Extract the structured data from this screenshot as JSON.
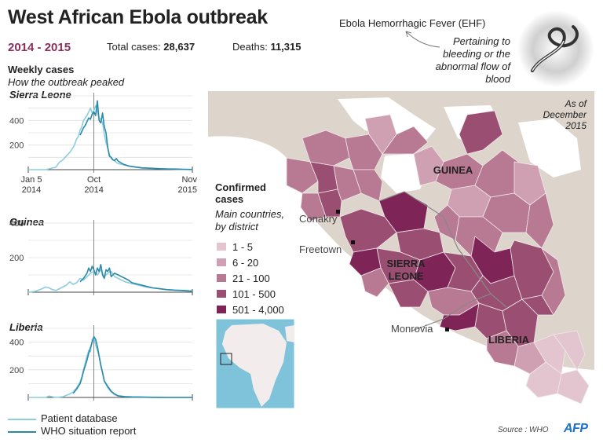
{
  "header": {
    "title": "West African Ebola outbreak",
    "years": "2014 - 2015",
    "total_cases_label": "Total cases:",
    "total_cases_value": "28,637",
    "deaths_label": "Deaths:",
    "deaths_value": "11,315"
  },
  "ehf": {
    "title": "Ebola Hemorrhagic Fever (EHF)",
    "definition": "Pertaining to bleeding or the abnormal flow of blood"
  },
  "weekly": {
    "heading": "Weekly cases",
    "subheading": "How the outbreak peaked"
  },
  "legend": {
    "patient": "Patient database",
    "who": "WHO situation report"
  },
  "colors": {
    "patient": "#8ecde0",
    "who": "#2a8aaa",
    "accent": "#8c2d5a",
    "map_bg": "#ddd4cc",
    "ocean": "#ffffff",
    "scale": [
      "#e3c5cf",
      "#cf9fb2",
      "#b87993",
      "#9a4e72",
      "#7e2457"
    ]
  },
  "chart_data": [
    {
      "type": "line",
      "title": "Sierra Leone",
      "x_tick_labels": [
        [
          "Jan 5",
          "2014"
        ],
        [
          "Oct",
          "2014"
        ],
        [
          "Nov",
          "2015"
        ]
      ],
      "x_tick_weeks": [
        0,
        38,
        95
      ],
      "ylim": [
        0,
        600
      ],
      "y_ticks": [
        200,
        400
      ],
      "series": [
        {
          "name": "Patient database",
          "weeks": [
            0,
            10,
            16,
            18,
            20,
            22,
            24,
            26,
            27,
            28,
            29,
            30,
            31,
            32,
            33,
            34,
            35,
            36,
            37,
            38,
            39,
            40,
            41,
            42,
            43,
            44,
            45,
            46,
            47,
            48,
            49,
            50,
            51,
            52,
            55,
            58,
            62,
            66,
            70,
            75,
            80,
            85,
            90,
            95
          ],
          "values": [
            0,
            0,
            20,
            60,
            80,
            110,
            140,
            180,
            210,
            250,
            270,
            320,
            350,
            400,
            420,
            440,
            470,
            500,
            460,
            480,
            520,
            470,
            420,
            410,
            380,
            290,
            220,
            180,
            120,
            90,
            80,
            70,
            60,
            50,
            40,
            30,
            20,
            12,
            10,
            8,
            6,
            4,
            2,
            0
          ]
        },
        {
          "name": "WHO situation report",
          "weeks": [
            30,
            31,
            32,
            33,
            34,
            35,
            36,
            37,
            38,
            39,
            40,
            41,
            42,
            43,
            44,
            45,
            46,
            47,
            48,
            49,
            50,
            51,
            52,
            55,
            58,
            62,
            66,
            70,
            75,
            80,
            85,
            90,
            95
          ],
          "values": [
            280,
            310,
            340,
            360,
            390,
            420,
            410,
            450,
            470,
            440,
            560,
            400,
            380,
            460,
            350,
            300,
            180,
            110,
            100,
            80,
            75,
            90,
            70,
            45,
            30,
            22,
            15,
            12,
            8,
            6,
            5,
            3,
            2
          ]
        }
      ]
    },
    {
      "type": "line",
      "title": "Guinea",
      "x_tick_weeks": [
        0,
        38,
        95
      ],
      "ylim": [
        0,
        400
      ],
      "y_ticks": [
        200,
        400
      ],
      "series": [
        {
          "name": "Patient database",
          "weeks": [
            0,
            4,
            8,
            10,
            12,
            14,
            16,
            18,
            20,
            22,
            24,
            26,
            28,
            30,
            32,
            34,
            36,
            38,
            40,
            42,
            44,
            46,
            48,
            50,
            52,
            56,
            60,
            64,
            68,
            72,
            76,
            80,
            85,
            90,
            95
          ],
          "values": [
            0,
            5,
            20,
            30,
            25,
            15,
            10,
            20,
            30,
            40,
            60,
            45,
            55,
            80,
            70,
            90,
            110,
            120,
            100,
            130,
            90,
            110,
            120,
            90,
            80,
            60,
            50,
            40,
            30,
            25,
            20,
            15,
            12,
            8,
            5
          ]
        },
        {
          "name": "WHO situation report",
          "weeks": [
            30,
            32,
            34,
            35,
            36,
            37,
            38,
            39,
            40,
            41,
            42,
            43,
            44,
            45,
            46,
            47,
            48,
            50,
            52,
            54,
            56,
            58,
            60,
            64,
            68,
            72,
            76,
            80,
            85,
            90,
            95
          ],
          "values": [
            60,
            80,
            110,
            140,
            120,
            150,
            130,
            100,
            140,
            120,
            160,
            100,
            80,
            130,
            120,
            140,
            90,
            110,
            100,
            90,
            80,
            70,
            55,
            45,
            35,
            25,
            20,
            15,
            12,
            10,
            6
          ]
        }
      ]
    },
    {
      "type": "line",
      "title": "Liberia",
      "x_tick_weeks": [
        0,
        38,
        95
      ],
      "ylim": [
        0,
        500
      ],
      "y_ticks": [
        200,
        400
      ],
      "series": [
        {
          "name": "Patient database",
          "weeks": [
            0,
            10,
            12,
            14,
            16,
            18,
            20,
            22,
            24,
            26,
            28,
            30,
            31,
            32,
            33,
            34,
            35,
            36,
            37,
            38,
            39,
            40,
            41,
            42,
            43,
            44,
            46,
            48,
            50,
            52,
            56,
            60,
            66,
            72,
            80,
            88,
            95
          ],
          "values": [
            0,
            0,
            10,
            5,
            0,
            2,
            5,
            15,
            25,
            40,
            70,
            110,
            150,
            200,
            250,
            300,
            340,
            330,
            420,
            430,
            380,
            340,
            300,
            240,
            180,
            120,
            70,
            40,
            20,
            10,
            5,
            3,
            2,
            1,
            0,
            0,
            0
          ]
        },
        {
          "name": "WHO situation report",
          "weeks": [
            26,
            28,
            30,
            31,
            32,
            33,
            34,
            35,
            36,
            37,
            38,
            39,
            40,
            41,
            42,
            43,
            44,
            46,
            48,
            50,
            52,
            56,
            60,
            66,
            72,
            80,
            88,
            95
          ],
          "values": [
            30,
            60,
            100,
            140,
            190,
            230,
            270,
            320,
            360,
            400,
            440,
            420,
            370,
            300,
            230,
            180,
            120,
            80,
            45,
            25,
            12,
            6,
            4,
            2,
            1,
            0,
            0,
            0
          ]
        }
      ]
    }
  ],
  "map": {
    "as_of": "As of December 2015",
    "legend_title": "Confirmed cases",
    "legend_subtitle": "Main countries, by district",
    "ranges": [
      "1 - 5",
      "6 - 20",
      "21 - 100",
      "101 - 500",
      "501 - 4,000"
    ],
    "countries": [
      "GUINEA",
      "SIERRA LEONE",
      "LIBERIA"
    ],
    "cities": [
      "Conakry",
      "Freetown",
      "Monrovia"
    ]
  },
  "source": "Source : WHO",
  "agency": "AFP"
}
